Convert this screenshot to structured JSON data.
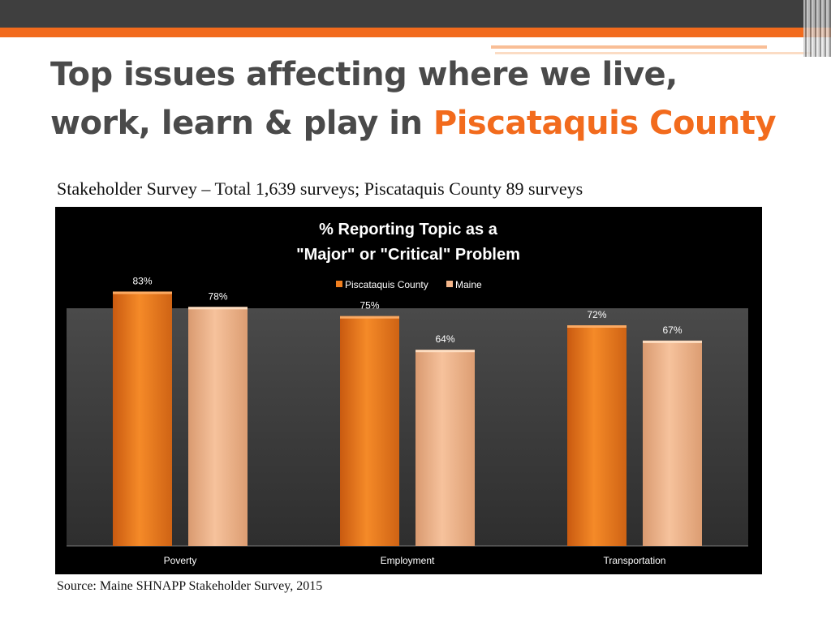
{
  "slide": {
    "title_part1": "Top issues affecting where we live, work, learn & play in ",
    "title_highlight": "Piscataquis County",
    "subtitle": "Stakeholder Survey – Total 1,639 surveys;  Piscataquis County 89 surveys",
    "source": "Source: Maine SHNAPP Stakeholder Survey, 2015"
  },
  "colors": {
    "accent": "#f26b1d",
    "title_text": "#4a4a4a",
    "chart_background": "#000000",
    "plot_background": "#3b3b3b",
    "series_county": "#f07f1f",
    "series_maine": "#f3b58a"
  },
  "chart_data": {
    "type": "bar",
    "title_line1": "% Reporting Topic as a",
    "title_line2": "\"Major\" or \"Critical\" Problem",
    "categories": [
      "Poverty",
      "Employment",
      "Transportation"
    ],
    "series": [
      {
        "name": "Piscataquis County",
        "values": [
          83,
          75,
          72
        ],
        "labels": [
          "83%",
          "75%",
          "72%"
        ]
      },
      {
        "name": "Maine",
        "values": [
          78,
          64,
          67
        ],
        "labels": [
          "78%",
          "64%",
          "67%"
        ]
      }
    ],
    "ylim": [
      0,
      90
    ],
    "grid": false,
    "legend_position": "top-center"
  }
}
